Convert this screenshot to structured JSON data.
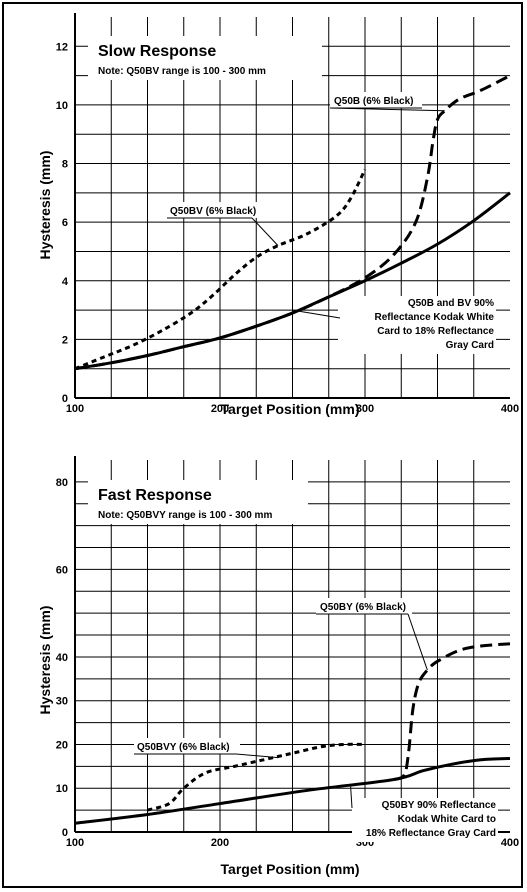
{
  "chart_data": [
    {
      "type": "line",
      "title": "Slow Response",
      "note": "Note: Q50BV range is 100 - 300 mm",
      "xlabel": "Target Position (mm)",
      "ylabel": "Hysteresis (mm)",
      "xlim": [
        100,
        400
      ],
      "ylim": [
        0,
        13
      ],
      "x_ticks": [
        100,
        200,
        300,
        400
      ],
      "y_ticks": [
        0,
        2,
        4,
        6,
        8,
        10,
        12
      ],
      "grid": true,
      "series": [
        {
          "name": "Q50B and BV 90% Reflectance Kodak White Card to 18% Reflectance Gray Card",
          "style": "solid",
          "x": [
            100,
            125,
            150,
            175,
            200,
            225,
            250,
            275,
            300,
            325,
            350,
            375,
            400
          ],
          "y": [
            1.0,
            1.2,
            1.45,
            1.75,
            2.05,
            2.45,
            2.9,
            3.45,
            4.0,
            4.6,
            5.25,
            6.05,
            7.0
          ]
        },
        {
          "name": "Q50BV (6% Black)",
          "style": "dashed-short",
          "x": [
            100,
            120,
            140,
            160,
            180,
            195,
            210,
            225,
            240,
            260,
            280,
            290,
            300
          ],
          "y": [
            1.0,
            1.4,
            1.8,
            2.3,
            2.9,
            3.5,
            4.2,
            4.8,
            5.2,
            5.6,
            6.2,
            6.8,
            7.8
          ]
        },
        {
          "name": "Q50B (6% Black)",
          "style": "dashed-long",
          "x": [
            100,
            125,
            150,
            175,
            200,
            225,
            250,
            275,
            300,
            320,
            335,
            343,
            347,
            350,
            355,
            365,
            380,
            400
          ],
          "y": [
            1.0,
            1.2,
            1.45,
            1.75,
            2.05,
            2.45,
            2.9,
            3.45,
            4.1,
            4.9,
            6.0,
            7.5,
            8.8,
            9.5,
            9.8,
            10.2,
            10.5,
            11.0
          ]
        }
      ],
      "annotations": [
        {
          "text": "Q50B (6% Black)",
          "x": 355,
          "y": 9.8
        },
        {
          "text": "Q50BV (6% Black)",
          "x": 240,
          "y": 5.2
        },
        {
          "text": "Q50B and BV 90%",
          "x": 250,
          "y": 3.0
        },
        {
          "text": "Reflectance Kodak White"
        },
        {
          "text": "Card to 18% Reflectance"
        },
        {
          "text": "Gray Card"
        }
      ]
    },
    {
      "type": "line",
      "title": "Fast Response",
      "note": "Note: Q50BVY range is 100 - 300 mm",
      "xlabel": "Target Position (mm)",
      "ylabel": "Hysteresis (mm)",
      "xlim": [
        100,
        400
      ],
      "ylim": [
        0,
        85
      ],
      "x_ticks": [
        100,
        200,
        300,
        400
      ],
      "y_ticks": [
        0,
        10,
        20,
        30,
        40,
        60,
        80
      ],
      "grid": true,
      "series": [
        {
          "name": "Q50BY 90% Reflectance Kodak White Card to 18% Reflectance Gray Card",
          "style": "solid",
          "x": [
            100,
            150,
            200,
            260,
            320,
            340,
            360,
            380,
            400
          ],
          "y": [
            2.0,
            4.0,
            6.5,
            9.5,
            12.0,
            14.0,
            15.5,
            16.5,
            16.8
          ]
        },
        {
          "name": "Q50BVY (6% Black)",
          "style": "dashed-short",
          "x": [
            150,
            165,
            175,
            190,
            210,
            230,
            250,
            270,
            285,
            300
          ],
          "y": [
            5.0,
            6.5,
            10.0,
            13.5,
            15.0,
            16.5,
            18.0,
            19.5,
            20.0,
            20.0
          ]
        },
        {
          "name": "Q50BY (6% Black)",
          "style": "dashed-long",
          "x": [
            320,
            327,
            330,
            333,
            337,
            343,
            350,
            365,
            380,
            400
          ],
          "y": [
            12.0,
            13.0,
            18.0,
            28.0,
            34.0,
            37.0,
            39.0,
            41.5,
            42.5,
            43.0
          ]
        }
      ],
      "annotations": [
        {
          "text": "Q50BY (6% Black)",
          "x": 343,
          "y": 37
        },
        {
          "text": "Q50BVY (6% Black)",
          "x": 240,
          "y": 17
        },
        {
          "text": "Q50BY 90% Reflectance",
          "x": 290,
          "y": 10.8
        },
        {
          "text": "Kodak White Card to"
        },
        {
          "text": "18% Reflectance Gray Card"
        }
      ]
    }
  ]
}
